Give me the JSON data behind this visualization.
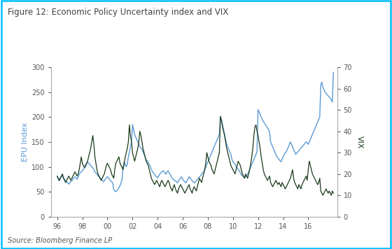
{
  "title": "Figure 12: Economic Policy Uncertainty index and VIX",
  "source": "Source: Bloomberg Finance LP",
  "ylabel_left": "EPU Index",
  "ylabel_right": "VIX",
  "left_ylim": [
    0,
    300
  ],
  "right_ylim": [
    0,
    70
  ],
  "left_yticks": [
    0,
    50,
    100,
    150,
    200,
    250,
    300
  ],
  "right_yticks": [
    0,
    10,
    20,
    30,
    40,
    50,
    60,
    70
  ],
  "xtick_labels": [
    "96",
    "98",
    "00",
    "02",
    "04",
    "06",
    "08",
    "10",
    "12",
    "14",
    "16"
  ],
  "xtick_positions": [
    1996,
    1998,
    2000,
    2002,
    2004,
    2006,
    2008,
    2010,
    2012,
    2014,
    2016
  ],
  "xlim": [
    1995.5,
    2018.3
  ],
  "epu_color": "#5B9BD5",
  "vix_color": "#1A3A1A",
  "border_color": "#00BFFF",
  "title_color": "#404040",
  "background_color": "#FFFFFF",
  "epu_data": {
    "dates": [
      1996.0,
      1996.083,
      1996.167,
      1996.25,
      1996.333,
      1996.417,
      1996.5,
      1996.583,
      1996.667,
      1996.75,
      1996.833,
      1996.917,
      1997.0,
      1997.083,
      1997.167,
      1997.25,
      1997.333,
      1997.417,
      1997.5,
      1997.583,
      1997.667,
      1997.75,
      1997.833,
      1997.917,
      1998.0,
      1998.083,
      1998.167,
      1998.25,
      1998.333,
      1998.417,
      1998.5,
      1998.583,
      1998.667,
      1998.75,
      1998.833,
      1998.917,
      1999.0,
      1999.083,
      1999.167,
      1999.25,
      1999.333,
      1999.417,
      1999.5,
      1999.583,
      1999.667,
      1999.75,
      1999.833,
      1999.917,
      2000.0,
      2000.083,
      2000.167,
      2000.25,
      2000.333,
      2000.417,
      2000.5,
      2000.583,
      2000.667,
      2000.75,
      2000.833,
      2000.917,
      2001.0,
      2001.083,
      2001.167,
      2001.25,
      2001.333,
      2001.417,
      2001.5,
      2001.583,
      2001.667,
      2001.75,
      2001.833,
      2001.917,
      2002.0,
      2002.083,
      2002.167,
      2002.25,
      2002.333,
      2002.417,
      2002.5,
      2002.583,
      2002.667,
      2002.75,
      2002.833,
      2002.917,
      2003.0,
      2003.083,
      2003.167,
      2003.25,
      2003.333,
      2003.417,
      2003.5,
      2003.583,
      2003.667,
      2003.75,
      2003.833,
      2003.917,
      2004.0,
      2004.083,
      2004.167,
      2004.25,
      2004.333,
      2004.417,
      2004.5,
      2004.583,
      2004.667,
      2004.75,
      2004.833,
      2004.917,
      2005.0,
      2005.083,
      2005.167,
      2005.25,
      2005.333,
      2005.417,
      2005.5,
      2005.583,
      2005.667,
      2005.75,
      2005.833,
      2005.917,
      2006.0,
      2006.083,
      2006.167,
      2006.25,
      2006.333,
      2006.417,
      2006.5,
      2006.583,
      2006.667,
      2006.75,
      2006.833,
      2006.917,
      2007.0,
      2007.083,
      2007.167,
      2007.25,
      2007.333,
      2007.417,
      2007.5,
      2007.583,
      2007.667,
      2007.75,
      2007.833,
      2007.917,
      2008.0,
      2008.083,
      2008.167,
      2008.25,
      2008.333,
      2008.417,
      2008.5,
      2008.583,
      2008.667,
      2008.75,
      2008.833,
      2008.917,
      2009.0,
      2009.083,
      2009.167,
      2009.25,
      2009.333,
      2009.417,
      2009.5,
      2009.583,
      2009.667,
      2009.75,
      2009.833,
      2009.917,
      2010.0,
      2010.083,
      2010.167,
      2010.25,
      2010.333,
      2010.417,
      2010.5,
      2010.583,
      2010.667,
      2010.75,
      2010.833,
      2010.917,
      2011.0,
      2011.083,
      2011.167,
      2011.25,
      2011.333,
      2011.417,
      2011.5,
      2011.583,
      2011.667,
      2011.75,
      2011.833,
      2011.917,
      2012.0,
      2012.083,
      2012.167,
      2012.25,
      2012.333,
      2012.417,
      2012.5,
      2012.583,
      2012.667,
      2012.75,
      2012.833,
      2012.917,
      2013.0,
      2013.083,
      2013.167,
      2013.25,
      2013.333,
      2013.417,
      2013.5,
      2013.583,
      2013.667,
      2013.75,
      2013.833,
      2013.917,
      2014.0,
      2014.083,
      2014.167,
      2014.25,
      2014.333,
      2014.417,
      2014.5,
      2014.583,
      2014.667,
      2014.75,
      2014.833,
      2014.917,
      2015.0,
      2015.083,
      2015.167,
      2015.25,
      2015.333,
      2015.417,
      2015.5,
      2015.583,
      2015.667,
      2015.75,
      2015.833,
      2015.917,
      2016.0,
      2016.083,
      2016.167,
      2016.25,
      2016.333,
      2016.417,
      2016.5,
      2016.583,
      2016.667,
      2016.75,
      2016.833,
      2016.917,
      2017.0,
      2017.083,
      2017.167,
      2017.25,
      2017.333,
      2017.417,
      2017.5,
      2017.583,
      2017.667,
      2017.75,
      2017.833,
      2017.917,
      2018.0
    ],
    "values": [
      80,
      75,
      72,
      78,
      82,
      80,
      78,
      75,
      72,
      70,
      68,
      65,
      68,
      70,
      72,
      75,
      78,
      80,
      78,
      75,
      80,
      85,
      88,
      90,
      92,
      95,
      98,
      100,
      105,
      110,
      108,
      105,
      103,
      100,
      98,
      95,
      90,
      88,
      85,
      82,
      80,
      78,
      75,
      73,
      70,
      72,
      75,
      78,
      80,
      78,
      75,
      72,
      70,
      68,
      55,
      52,
      50,
      52,
      55,
      58,
      62,
      68,
      75,
      100,
      110,
      105,
      100,
      105,
      120,
      130,
      140,
      150,
      185,
      175,
      165,
      160,
      155,
      150,
      145,
      140,
      138,
      135,
      130,
      125,
      120,
      115,
      112,
      108,
      105,
      100,
      95,
      90,
      88,
      85,
      82,
      80,
      78,
      82,
      85,
      88,
      90,
      92,
      90,
      88,
      85,
      90,
      92,
      88,
      85,
      80,
      78,
      75,
      73,
      72,
      70,
      68,
      72,
      75,
      78,
      80,
      75,
      72,
      70,
      68,
      72,
      75,
      80,
      78,
      75,
      72,
      70,
      68,
      70,
      72,
      75,
      78,
      80,
      82,
      85,
      88,
      90,
      95,
      98,
      105,
      110,
      115,
      120,
      125,
      130,
      135,
      140,
      145,
      150,
      155,
      160,
      165,
      200,
      195,
      185,
      175,
      165,
      155,
      145,
      140,
      135,
      130,
      125,
      115,
      110,
      108,
      105,
      100,
      98,
      95,
      92,
      88,
      85,
      82,
      80,
      78,
      80,
      82,
      85,
      90,
      95,
      100,
      105,
      110,
      115,
      120,
      125,
      130,
      215,
      210,
      205,
      200,
      195,
      192,
      188,
      185,
      182,
      178,
      175,
      170,
      150,
      145,
      140,
      135,
      130,
      125,
      120,
      118,
      115,
      112,
      110,
      115,
      120,
      125,
      128,
      130,
      135,
      140,
      145,
      150,
      145,
      140,
      135,
      130,
      125,
      128,
      130,
      132,
      135,
      138,
      140,
      142,
      145,
      148,
      150,
      148,
      145,
      150,
      155,
      160,
      165,
      170,
      175,
      180,
      185,
      190,
      195,
      200,
      265,
      270,
      260,
      255,
      250,
      248,
      245,
      243,
      240,
      238,
      235,
      230,
      290
    ]
  },
  "vix_data": {
    "dates": [
      1996.0,
      1996.083,
      1996.167,
      1996.25,
      1996.333,
      1996.417,
      1996.5,
      1996.583,
      1996.667,
      1996.75,
      1996.833,
      1996.917,
      1997.0,
      1997.083,
      1997.167,
      1997.25,
      1997.333,
      1997.417,
      1997.5,
      1997.583,
      1997.667,
      1997.75,
      1997.833,
      1997.917,
      1998.0,
      1998.083,
      1998.167,
      1998.25,
      1998.333,
      1998.417,
      1998.5,
      1998.583,
      1998.667,
      1998.75,
      1998.833,
      1998.917,
      1999.0,
      1999.083,
      1999.167,
      1999.25,
      1999.333,
      1999.417,
      1999.5,
      1999.583,
      1999.667,
      1999.75,
      1999.833,
      1999.917,
      2000.0,
      2000.083,
      2000.167,
      2000.25,
      2000.333,
      2000.417,
      2000.5,
      2000.583,
      2000.667,
      2000.75,
      2000.833,
      2000.917,
      2001.0,
      2001.083,
      2001.167,
      2001.25,
      2001.333,
      2001.417,
      2001.5,
      2001.583,
      2001.667,
      2001.75,
      2001.833,
      2001.917,
      2002.0,
      2002.083,
      2002.167,
      2002.25,
      2002.333,
      2002.417,
      2002.5,
      2002.583,
      2002.667,
      2002.75,
      2002.833,
      2002.917,
      2003.0,
      2003.083,
      2003.167,
      2003.25,
      2003.333,
      2003.417,
      2003.5,
      2003.583,
      2003.667,
      2003.75,
      2003.833,
      2003.917,
      2004.0,
      2004.083,
      2004.167,
      2004.25,
      2004.333,
      2004.417,
      2004.5,
      2004.583,
      2004.667,
      2004.75,
      2004.833,
      2004.917,
      2005.0,
      2005.083,
      2005.167,
      2005.25,
      2005.333,
      2005.417,
      2005.5,
      2005.583,
      2005.667,
      2005.75,
      2005.833,
      2005.917,
      2006.0,
      2006.083,
      2006.167,
      2006.25,
      2006.333,
      2006.417,
      2006.5,
      2006.583,
      2006.667,
      2006.75,
      2006.833,
      2006.917,
      2007.0,
      2007.083,
      2007.167,
      2007.25,
      2007.333,
      2007.417,
      2007.5,
      2007.583,
      2007.667,
      2007.75,
      2007.833,
      2007.917,
      2008.0,
      2008.083,
      2008.167,
      2008.25,
      2008.333,
      2008.417,
      2008.5,
      2008.583,
      2008.667,
      2008.75,
      2008.833,
      2008.917,
      2009.0,
      2009.083,
      2009.167,
      2009.25,
      2009.333,
      2009.417,
      2009.5,
      2009.583,
      2009.667,
      2009.75,
      2009.833,
      2009.917,
      2010.0,
      2010.083,
      2010.167,
      2010.25,
      2010.333,
      2010.417,
      2010.5,
      2010.583,
      2010.667,
      2010.75,
      2010.833,
      2010.917,
      2011.0,
      2011.083,
      2011.167,
      2011.25,
      2011.333,
      2011.417,
      2011.5,
      2011.583,
      2011.667,
      2011.75,
      2011.833,
      2011.917,
      2012.0,
      2012.083,
      2012.167,
      2012.25,
      2012.333,
      2012.417,
      2012.5,
      2012.583,
      2012.667,
      2012.75,
      2012.833,
      2012.917,
      2013.0,
      2013.083,
      2013.167,
      2013.25,
      2013.333,
      2013.417,
      2013.5,
      2013.583,
      2013.667,
      2013.75,
      2013.833,
      2013.917,
      2014.0,
      2014.083,
      2014.167,
      2014.25,
      2014.333,
      2014.417,
      2014.5,
      2014.583,
      2014.667,
      2014.75,
      2014.833,
      2014.917,
      2015.0,
      2015.083,
      2015.167,
      2015.25,
      2015.333,
      2015.417,
      2015.5,
      2015.583,
      2015.667,
      2015.75,
      2015.833,
      2015.917,
      2016.0,
      2016.083,
      2016.167,
      2016.25,
      2016.333,
      2016.417,
      2016.5,
      2016.583,
      2016.667,
      2016.75,
      2016.833,
      2016.917,
      2017.0,
      2017.083,
      2017.167,
      2017.25,
      2017.333,
      2017.417,
      2017.5,
      2017.583,
      2017.667,
      2017.75,
      2017.833,
      2017.917,
      2018.0
    ],
    "values": [
      19,
      18,
      17,
      18,
      19,
      20,
      18,
      17,
      16,
      17,
      18,
      19,
      18,
      17,
      18,
      19,
      20,
      21,
      20,
      19,
      20,
      22,
      25,
      28,
      25,
      24,
      23,
      24,
      25,
      26,
      28,
      30,
      32,
      35,
      38,
      34,
      28,
      25,
      22,
      20,
      19,
      18,
      17,
      18,
      19,
      20,
      22,
      24,
      25,
      24,
      23,
      22,
      20,
      19,
      18,
      22,
      25,
      26,
      27,
      28,
      25,
      24,
      23,
      22,
      25,
      28,
      30,
      32,
      35,
      43,
      38,
      35,
      30,
      28,
      26,
      28,
      30,
      32,
      35,
      40,
      38,
      35,
      32,
      30,
      28,
      26,
      25,
      24,
      22,
      20,
      18,
      17,
      16,
      15,
      16,
      17,
      16,
      15,
      14,
      16,
      17,
      16,
      15,
      14,
      15,
      16,
      17,
      16,
      14,
      13,
      12,
      14,
      15,
      13,
      12,
      11,
      13,
      14,
      15,
      14,
      13,
      12,
      11,
      12,
      13,
      14,
      15,
      13,
      12,
      11,
      13,
      14,
      13,
      12,
      14,
      16,
      18,
      17,
      16,
      18,
      20,
      22,
      25,
      30,
      28,
      26,
      25,
      24,
      22,
      21,
      20,
      22,
      24,
      26,
      28,
      30,
      47,
      45,
      42,
      40,
      38,
      35,
      32,
      30,
      28,
      26,
      24,
      23,
      22,
      21,
      20,
      22,
      24,
      26,
      25,
      24,
      22,
      20,
      19,
      18,
      20,
      19,
      18,
      20,
      22,
      25,
      28,
      32,
      38,
      42,
      43,
      40,
      38,
      35,
      32,
      28,
      25,
      22,
      20,
      19,
      18,
      17,
      18,
      19,
      16,
      15,
      14,
      15,
      16,
      17,
      16,
      15,
      16,
      15,
      14,
      16,
      15,
      14,
      13,
      14,
      15,
      16,
      17,
      18,
      20,
      22,
      18,
      16,
      15,
      14,
      13,
      15,
      14,
      13,
      15,
      16,
      17,
      18,
      19,
      17,
      22,
      26,
      24,
      22,
      20,
      19,
      18,
      17,
      16,
      15,
      16,
      18,
      12,
      11,
      10,
      11,
      12,
      13,
      12,
      11,
      12,
      11,
      10,
      12,
      11
    ]
  }
}
